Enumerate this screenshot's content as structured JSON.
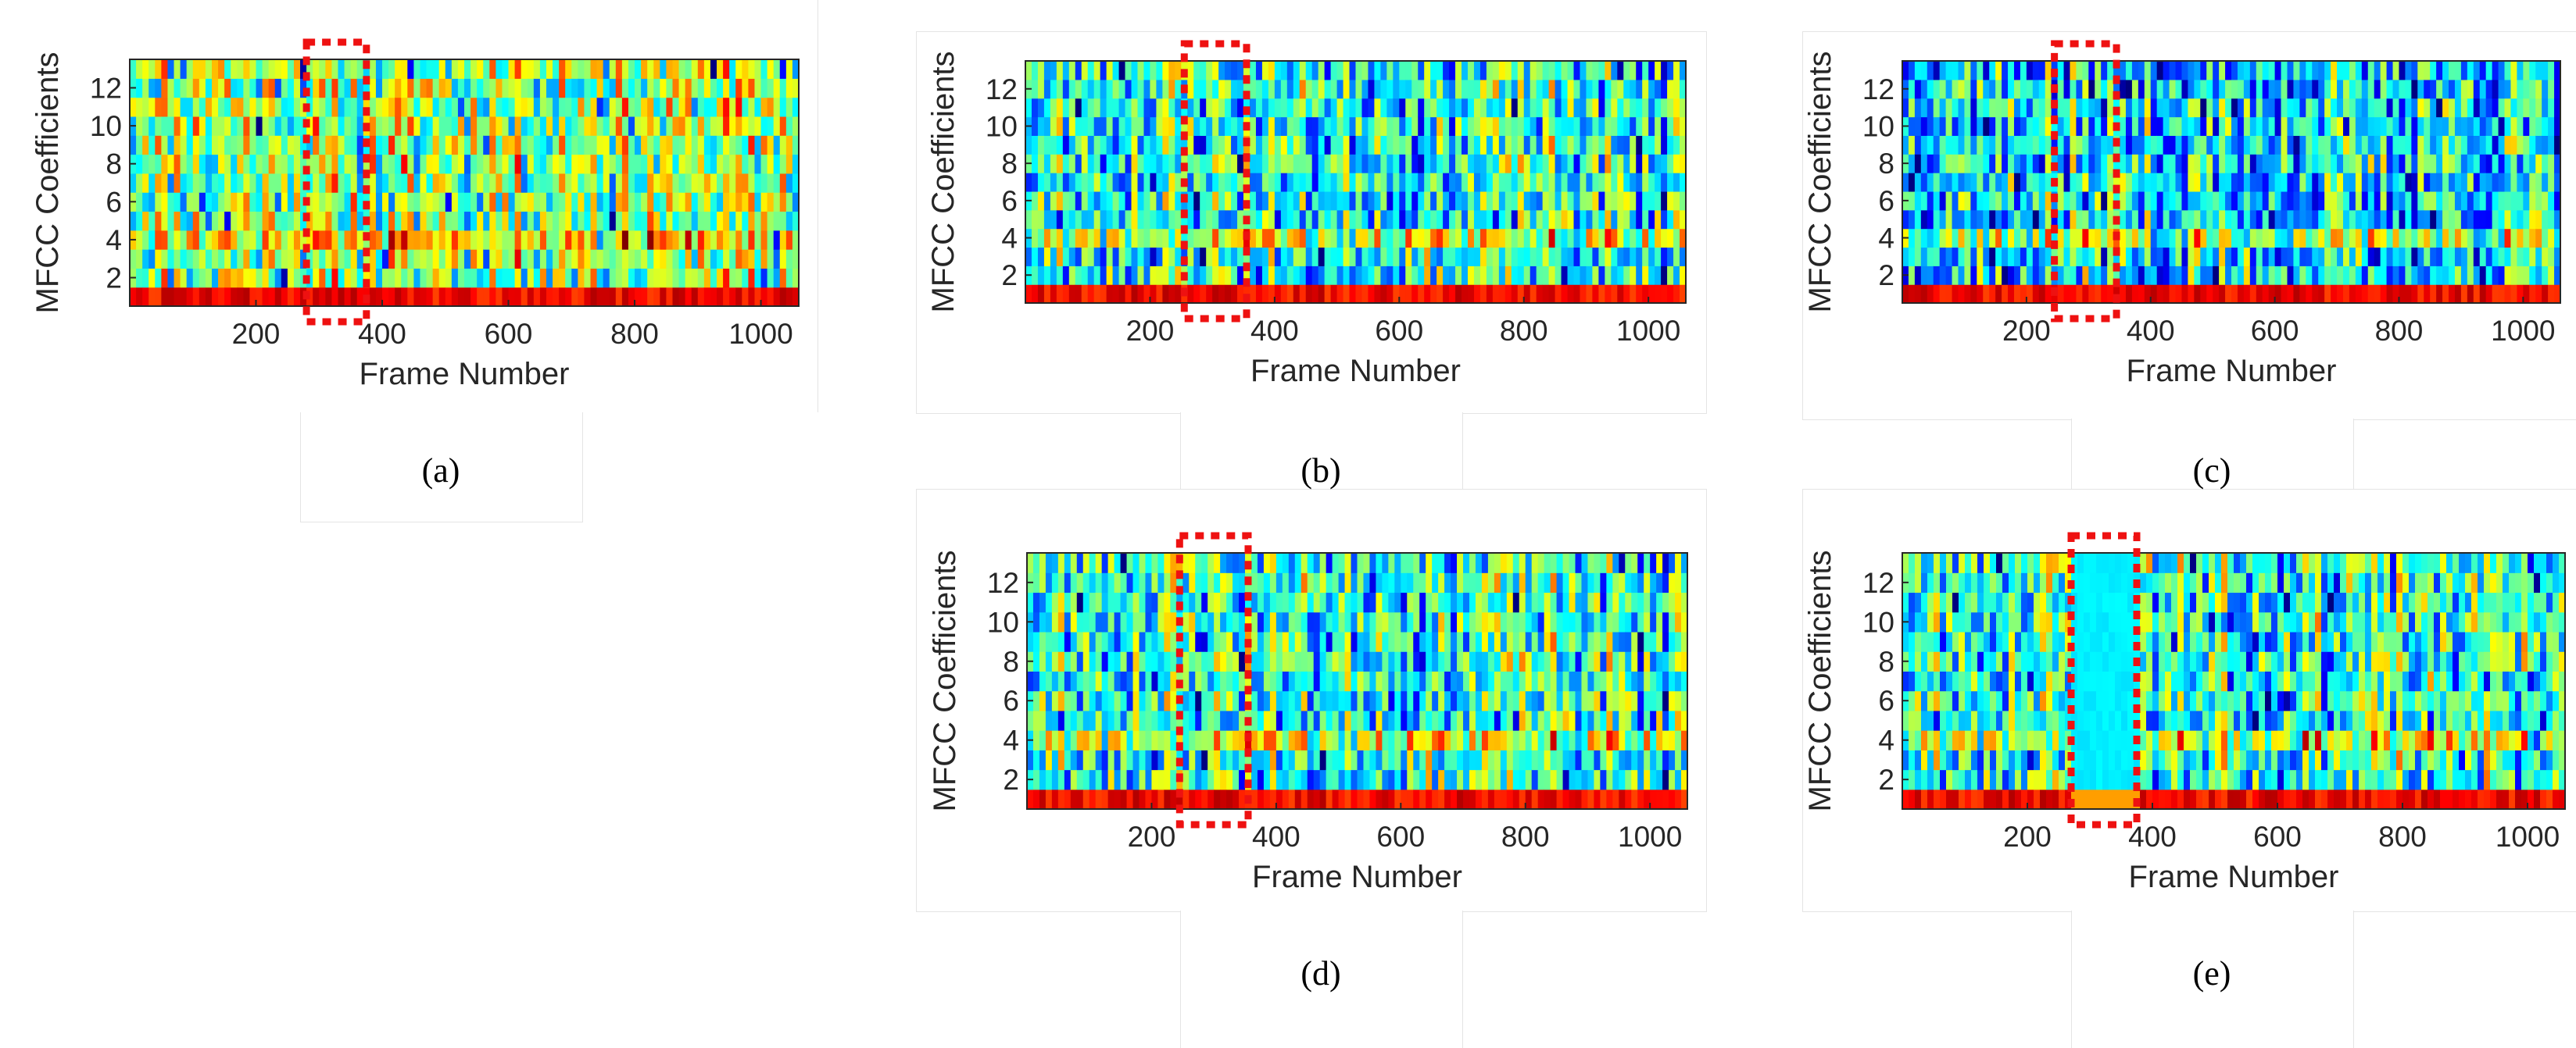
{
  "figure": {
    "description_free": true
  },
  "panels": [
    {
      "id": "a",
      "caption": "(a)",
      "xlabel": "Frame Number",
      "ylabel": "MFCC Coefficients",
      "seed": 11,
      "warmth": 1.0,
      "yticks": [
        2,
        4,
        6,
        8,
        10,
        12
      ],
      "xticks": [
        200,
        400,
        600,
        800,
        1000
      ],
      "xlim": [
        0,
        1060
      ],
      "ylim": [
        0.5,
        13.5
      ],
      "highlight": {
        "frame_start": 280,
        "frame_end": 375
      },
      "suppressed": false
    },
    {
      "id": "b",
      "caption": "(b)",
      "xlabel": "Frame Number",
      "ylabel": "MFCC Coefficients",
      "seed": 23,
      "warmth": 0.45,
      "yticks": [
        2,
        4,
        6,
        8,
        10,
        12
      ],
      "xticks": [
        200,
        400,
        600,
        800,
        1000
      ],
      "xlim": [
        0,
        1060
      ],
      "ylim": [
        0.5,
        13.5
      ],
      "highlight": {
        "frame_start": 255,
        "frame_end": 355
      },
      "suppressed": false
    },
    {
      "id": "c",
      "caption": "(c)",
      "xlabel": "Frame Number",
      "ylabel": "MFCC Coefficients",
      "seed": 37,
      "warmth": 0.2,
      "yticks": [
        2,
        4,
        6,
        8,
        10,
        12
      ],
      "xticks": [
        200,
        400,
        600,
        800,
        1000
      ],
      "xlim": [
        0,
        1060
      ],
      "ylim": [
        0.5,
        13.5
      ],
      "highlight": {
        "frame_start": 245,
        "frame_end": 345
      },
      "suppressed": false
    },
    {
      "id": "d",
      "caption": "(d)",
      "xlabel": "Frame Number",
      "ylabel": "MFCC Coefficients",
      "seed": 23,
      "warmth": 0.5,
      "yticks": [
        2,
        4,
        6,
        8,
        10,
        12
      ],
      "xticks": [
        200,
        400,
        600,
        800,
        1000
      ],
      "xlim": [
        0,
        1060
      ],
      "ylim": [
        0.5,
        13.5
      ],
      "highlight": {
        "frame_start": 245,
        "frame_end": 355
      },
      "suppressed": false
    },
    {
      "id": "e",
      "caption": "(e)",
      "xlabel": "Frame Number",
      "ylabel": "MFCC Coefficients",
      "seed": 23,
      "warmth": 0.5,
      "yticks": [
        2,
        4,
        6,
        8,
        10,
        12
      ],
      "xticks": [
        200,
        400,
        600,
        800,
        1000
      ],
      "xlim": [
        0,
        1060
      ],
      "ylim": [
        0.5,
        13.5
      ],
      "highlight": {
        "frame_start": 270,
        "frame_end": 375
      },
      "suppressed": true
    }
  ],
  "chart_data": [
    {
      "type": "heatmap",
      "title": "(a)",
      "xlabel": "Frame Number",
      "ylabel": "MFCC Coefficients",
      "x_range": [
        1,
        1060
      ],
      "y_range": [
        1,
        13
      ],
      "xticks": [
        200,
        400,
        600,
        800,
        1000
      ],
      "yticks": [
        2,
        4,
        6,
        8,
        10,
        12
      ],
      "colormap": "jet",
      "highlighted_frames": [
        280,
        375
      ]
    },
    {
      "type": "heatmap",
      "title": "(b)",
      "xlabel": "Frame Number",
      "ylabel": "MFCC Coefficients",
      "x_range": [
        1,
        1060
      ],
      "y_range": [
        1,
        13
      ],
      "xticks": [
        200,
        400,
        600,
        800,
        1000
      ],
      "yticks": [
        2,
        4,
        6,
        8,
        10,
        12
      ],
      "colormap": "jet",
      "highlighted_frames": [
        255,
        355
      ]
    },
    {
      "type": "heatmap",
      "title": "(c)",
      "xlabel": "Frame Number",
      "ylabel": "MFCC Coefficients",
      "x_range": [
        1,
        1060
      ],
      "y_range": [
        1,
        13
      ],
      "xticks": [
        200,
        400,
        600,
        800,
        1000
      ],
      "yticks": [
        2,
        4,
        6,
        8,
        10,
        12
      ],
      "colormap": "jet",
      "highlighted_frames": [
        245,
        345
      ]
    },
    {
      "type": "heatmap",
      "title": "(d)",
      "xlabel": "Frame Number",
      "ylabel": "MFCC Coefficients",
      "x_range": [
        1,
        1060
      ],
      "y_range": [
        1,
        13
      ],
      "xticks": [
        200,
        400,
        600,
        800,
        1000
      ],
      "yticks": [
        2,
        4,
        6,
        8,
        10,
        12
      ],
      "colormap": "jet",
      "highlighted_frames": [
        245,
        355
      ]
    },
    {
      "type": "heatmap",
      "title": "(e)",
      "xlabel": "Frame Number",
      "ylabel": "MFCC Coefficients",
      "x_range": [
        1,
        1060
      ],
      "y_range": [
        1,
        13
      ],
      "xticks": [
        200,
        400,
        600,
        800,
        1000
      ],
      "yticks": [
        2,
        4,
        6,
        8,
        10,
        12
      ],
      "colormap": "jet",
      "highlighted_frames": [
        270,
        375
      ]
    }
  ]
}
